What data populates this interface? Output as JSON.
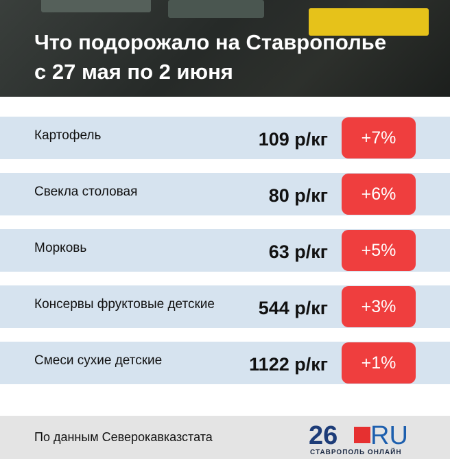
{
  "header": {
    "title_lines": [
      "Что подорожало на Ставрополье",
      "с 27 мая по 2 июня"
    ]
  },
  "table": {
    "rows": [
      [
        "Картофель",
        "109 р/кг",
        "+7%"
      ],
      [
        "Свекла столовая",
        "80 р/кг",
        "+6%"
      ],
      [
        "Морковь",
        "63 р/кг",
        "+5%"
      ],
      [
        "Консервы фруктовые детские",
        "544 р/кг",
        "+3%"
      ],
      [
        "Смеси сухие детские",
        "1122 р/кг",
        "+1%"
      ]
    ]
  },
  "footer": {
    "source": "По данным Северокавказстата",
    "logo_number": "26",
    "logo_domain": "RU",
    "logo_caption": "СТАВРОПОЛЬ ОНЛАЙН"
  }
}
